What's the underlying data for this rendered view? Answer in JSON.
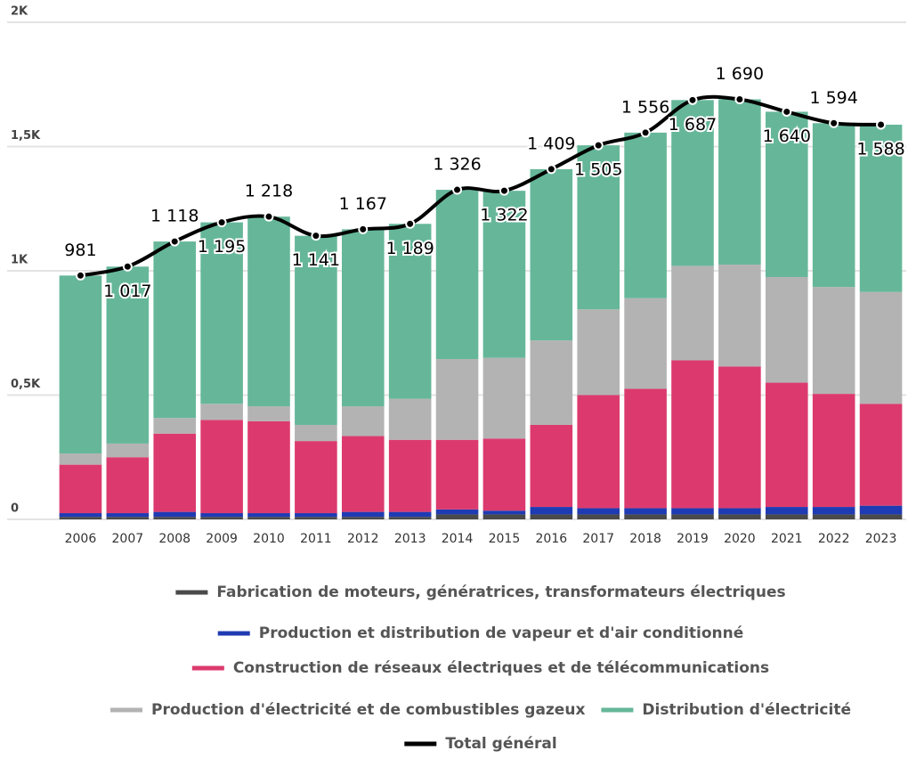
{
  "chart_data": {
    "type": "bar",
    "stacked": true,
    "categories": [
      "2006",
      "2007",
      "2008",
      "2009",
      "2010",
      "2011",
      "2012",
      "2013",
      "2014",
      "2015",
      "2016",
      "2017",
      "2018",
      "2019",
      "2020",
      "2021",
      "2022",
      "2023"
    ],
    "series": [
      {
        "name": "Fabrication de moteurs, génératrices, transformateurs électriques",
        "color": "#4a4a4a",
        "values": [
          10,
          10,
          10,
          10,
          10,
          10,
          10,
          10,
          20,
          20,
          20,
          20,
          20,
          20,
          20,
          20,
          20,
          20
        ]
      },
      {
        "name": "Production et distribution de vapeur et d'air conditionné",
        "color": "#1f3bb3",
        "values": [
          15,
          15,
          20,
          15,
          15,
          15,
          20,
          20,
          20,
          15,
          30,
          25,
          25,
          25,
          25,
          30,
          30,
          35
        ]
      },
      {
        "name": "Construction de réseaux électriques et de télécommunications",
        "color": "#dc3a6e",
        "values": [
          195,
          225,
          315,
          375,
          370,
          290,
          305,
          290,
          280,
          290,
          330,
          455,
          480,
          595,
          570,
          500,
          455,
          410
        ]
      },
      {
        "name": "Production d'électricité et de combustibles gazeux",
        "color": "#b3b3b3",
        "values": [
          45,
          55,
          63,
          65,
          60,
          65,
          120,
          165,
          325,
          325,
          340,
          345,
          365,
          380,
          410,
          425,
          430,
          450
        ]
      },
      {
        "name": "Distribution d'électricité",
        "color": "#66b79a",
        "values": [
          716,
          712,
          710,
          730,
          763,
          761,
          712,
          704,
          681,
          672,
          689,
          660,
          666,
          667,
          665,
          665,
          659,
          673
        ]
      },
      {
        "name": "Total général",
        "color": "#000000",
        "type": "line",
        "values": [
          981,
          1017,
          1118,
          1195,
          1218,
          1141,
          1167,
          1189,
          1326,
          1322,
          1409,
          1505,
          1556,
          1687,
          1690,
          1640,
          1594,
          1588
        ],
        "value_labels": [
          "981",
          "1 017",
          "1 118",
          "1 195",
          "1 218",
          "1 141",
          "1 167",
          "1 189",
          "1 326",
          "1 322",
          "1 409",
          "1 505",
          "1 556",
          "1 687",
          "1 690",
          "1 640",
          "1 594",
          "1 588"
        ]
      }
    ],
    "ylim": [
      0,
      2000
    ],
    "yticks": [
      {
        "value": 0,
        "label": "0"
      },
      {
        "value": 500,
        "label": "0,5K"
      },
      {
        "value": 1000,
        "label": "1K"
      },
      {
        "value": 1500,
        "label": "1,5K"
      },
      {
        "value": 2000,
        "label": "2K"
      }
    ],
    "grid": true
  }
}
